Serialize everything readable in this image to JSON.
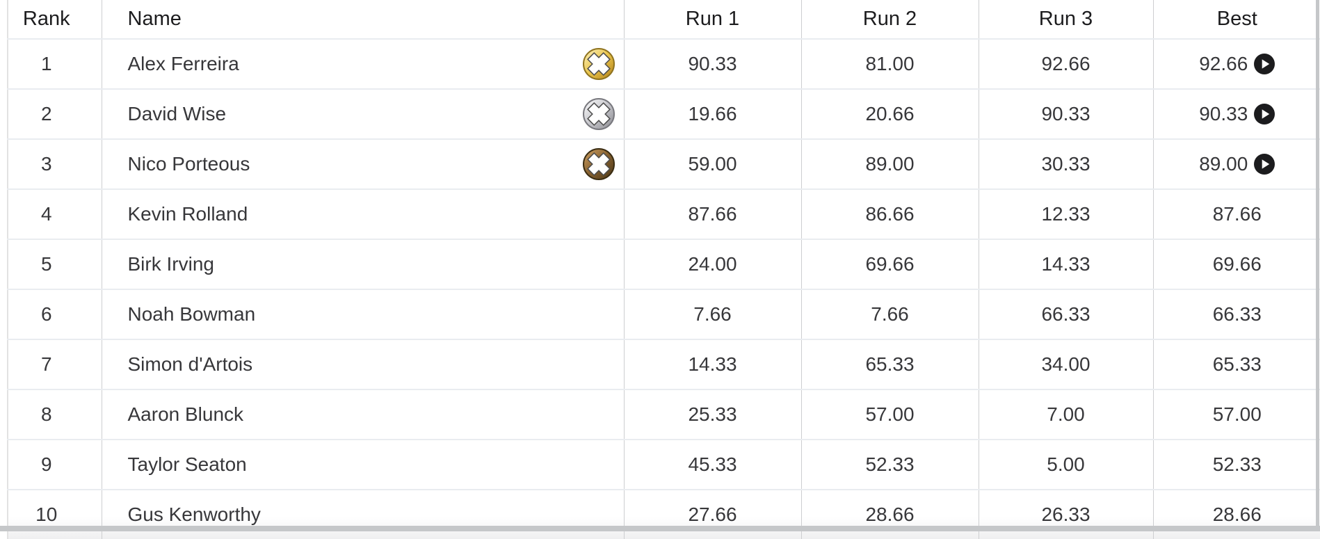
{
  "table": {
    "columns": [
      {
        "key": "rank",
        "label": "Rank"
      },
      {
        "key": "name",
        "label": "Name"
      },
      {
        "key": "run1",
        "label": "Run 1"
      },
      {
        "key": "run2",
        "label": "Run 2"
      },
      {
        "key": "run3",
        "label": "Run 3"
      },
      {
        "key": "best",
        "label": "Best"
      }
    ],
    "rows": [
      {
        "rank": "1",
        "name": "Alex Ferreira",
        "medal": "gold",
        "run1": "90.33",
        "run2": "81.00",
        "run3": "92.66",
        "best": "92.66",
        "has_play": true
      },
      {
        "rank": "2",
        "name": "David Wise",
        "medal": "silver",
        "run1": "19.66",
        "run2": "20.66",
        "run3": "90.33",
        "best": "90.33",
        "has_play": true
      },
      {
        "rank": "3",
        "name": "Nico Porteous",
        "medal": "bronze",
        "run1": "59.00",
        "run2": "89.00",
        "run3": "30.33",
        "best": "89.00",
        "has_play": true
      },
      {
        "rank": "4",
        "name": "Kevin Rolland",
        "medal": null,
        "run1": "87.66",
        "run2": "86.66",
        "run3": "12.33",
        "best": "87.66",
        "has_play": false
      },
      {
        "rank": "5",
        "name": "Birk Irving",
        "medal": null,
        "run1": "24.00",
        "run2": "69.66",
        "run3": "14.33",
        "best": "69.66",
        "has_play": false
      },
      {
        "rank": "6",
        "name": "Noah Bowman",
        "medal": null,
        "run1": "7.66",
        "run2": "7.66",
        "run3": "66.33",
        "best": "66.33",
        "has_play": false
      },
      {
        "rank": "7",
        "name": "Simon d'Artois",
        "medal": null,
        "run1": "14.33",
        "run2": "65.33",
        "run3": "34.00",
        "best": "65.33",
        "has_play": false
      },
      {
        "rank": "8",
        "name": "Aaron Blunck",
        "medal": null,
        "run1": "25.33",
        "run2": "57.00",
        "run3": "7.00",
        "best": "57.00",
        "has_play": false
      },
      {
        "rank": "9",
        "name": "Taylor Seaton",
        "medal": null,
        "run1": "45.33",
        "run2": "52.33",
        "run3": "5.00",
        "best": "52.33",
        "has_play": false
      },
      {
        "rank": "10",
        "name": "Gus Kenworthy",
        "medal": null,
        "run1": "27.66",
        "run2": "28.66",
        "run3": "26.33",
        "best": "28.66",
        "has_play": false
      }
    ]
  },
  "icons": {
    "medal_colors": {
      "gold": {
        "from": "#fdf3c3",
        "mid": "#e9c44a",
        "to": "#b07f1a",
        "ring": "#8f731f"
      },
      "silver": {
        "from": "#ffffff",
        "mid": "#c6c6cb",
        "to": "#8a8a90",
        "ring": "#78787e"
      },
      "bronze": {
        "from": "#d2a466",
        "mid": "#85602f",
        "to": "#4a3719",
        "ring": "#3a2c12"
      },
      "cross": "#ffffff",
      "cross_outline": "#4c4c4c"
    },
    "play": {
      "bg": "#1c1c1e",
      "fg": "#ffffff"
    }
  },
  "colors": {
    "background": "#ffffff",
    "row_separator": "#e9ecf0",
    "column_divider": "#cdced0",
    "left_border": "#e2e2e2",
    "scrollbar": "#c5c7c9",
    "header_text": "#1c1c1e",
    "cell_text": "#37373a"
  }
}
